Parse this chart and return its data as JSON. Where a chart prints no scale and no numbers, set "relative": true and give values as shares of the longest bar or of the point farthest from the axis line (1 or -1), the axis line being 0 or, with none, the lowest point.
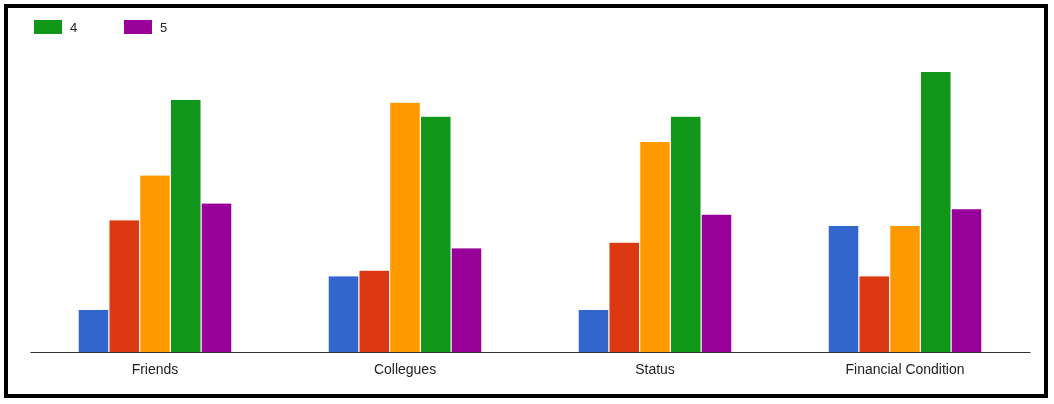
{
  "chart_data": {
    "type": "bar",
    "relative": true,
    "legend": "top left",
    "categories": [
      "Friends",
      "Collegues",
      "Status",
      "Financial Condition"
    ],
    "series": [
      {
        "color": "#3366cc",
        "values": [
          0.15,
          0.27,
          0.15,
          0.45
        ]
      },
      {
        "color": "#dc3912",
        "values": [
          0.47,
          0.29,
          0.39,
          0.27
        ]
      },
      {
        "color": "#ff9900",
        "values": [
          0.63,
          0.89,
          0.75,
          0.45
        ]
      },
      {
        "name": "4",
        "color": "#109618",
        "values": [
          0.9,
          0.84,
          0.84,
          1
        ]
      },
      {
        "name": "5",
        "color": "#990099",
        "values": [
          0.53,
          0.37,
          0.49,
          0.51
        ]
      }
    ]
  }
}
